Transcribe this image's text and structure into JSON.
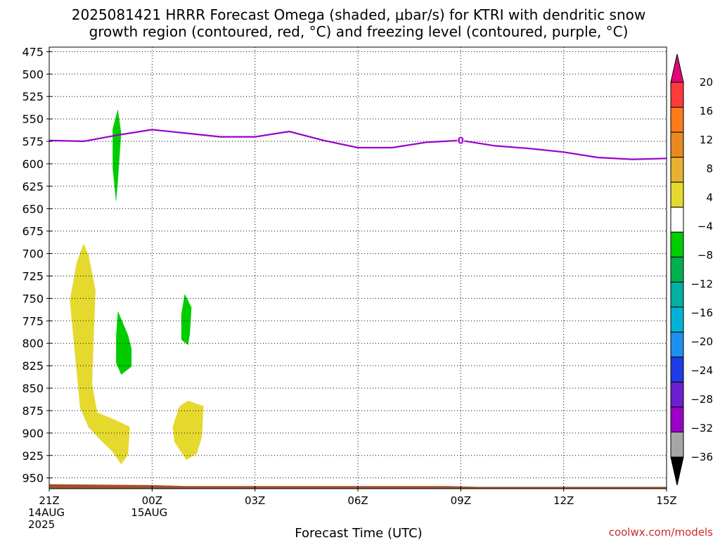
{
  "header": {
    "title_line1": "2025081421 HRRR Forecast Omega (shaded, μbar/s) for KTRI with dendritic snow",
    "title_line2": "growth region (contoured, red, °C) and freezing level (contoured, purple, °C)"
  },
  "footer": {
    "xlabel": "Forecast Time (UTC)",
    "credit": "coolwx.com/models"
  },
  "chart_data": {
    "type": "time-height cross section",
    "x_unit": "forecast hour from 2025-08-14 21Z",
    "xlim": [
      0,
      18
    ],
    "ylim_hpa": [
      470,
      962
    ],
    "y_axis_inverted": true,
    "grid": true,
    "yticks": [
      475,
      500,
      525,
      550,
      575,
      600,
      625,
      650,
      675,
      700,
      725,
      750,
      775,
      800,
      825,
      850,
      875,
      900,
      925,
      950
    ],
    "xticks": [
      {
        "hour": 0,
        "lines": [
          "21Z",
          "14AUG",
          "2025"
        ]
      },
      {
        "hour": 3,
        "lines": [
          "00Z",
          "15AUG"
        ]
      },
      {
        "hour": 6,
        "lines": [
          "03Z"
        ]
      },
      {
        "hour": 9,
        "lines": [
          "06Z"
        ]
      },
      {
        "hour": 12,
        "lines": [
          "09Z"
        ]
      },
      {
        "hour": 15,
        "lines": [
          "12Z"
        ]
      },
      {
        "hour": 18,
        "lines": [
          "15Z"
        ]
      }
    ],
    "freezing_level": {
      "label": "0",
      "label_at_hour": 12,
      "color": "#9900cc",
      "points": [
        [
          0,
          574
        ],
        [
          1,
          575
        ],
        [
          2,
          568
        ],
        [
          3,
          562
        ],
        [
          4,
          566
        ],
        [
          5,
          570
        ],
        [
          6,
          570
        ],
        [
          7,
          564
        ],
        [
          8,
          574
        ],
        [
          9,
          582
        ],
        [
          10,
          582
        ],
        [
          11,
          576
        ],
        [
          12,
          574
        ],
        [
          13,
          580
        ],
        [
          14,
          583
        ],
        [
          15,
          587
        ],
        [
          16,
          593
        ],
        [
          17,
          595
        ],
        [
          18,
          594
        ]
      ]
    },
    "omega_regions": [
      {
        "color": "#00cc00",
        "points": [
          [
            1.85,
            561
          ],
          [
            2.0,
            539
          ],
          [
            2.1,
            566
          ],
          [
            2.0,
            620
          ],
          [
            1.95,
            643
          ],
          [
            1.85,
            605
          ]
        ]
      },
      {
        "color": "#e6d92e",
        "points": [
          [
            1.0,
            689
          ],
          [
            1.15,
            702
          ],
          [
            1.35,
            741
          ],
          [
            1.3,
            791
          ],
          [
            1.25,
            845
          ],
          [
            1.4,
            877
          ],
          [
            1.9,
            885
          ],
          [
            2.35,
            893
          ],
          [
            2.3,
            924
          ],
          [
            2.1,
            935
          ],
          [
            1.85,
            921
          ],
          [
            1.55,
            910
          ],
          [
            1.15,
            894
          ],
          [
            0.9,
            872
          ],
          [
            0.7,
            792
          ],
          [
            0.6,
            752
          ],
          [
            0.8,
            710
          ]
        ]
      },
      {
        "color": "#00cc00",
        "points": [
          [
            2.0,
            764
          ],
          [
            2.3,
            791
          ],
          [
            2.4,
            806
          ],
          [
            2.4,
            826
          ],
          [
            2.1,
            835
          ],
          [
            1.95,
            822
          ],
          [
            1.95,
            792
          ]
        ]
      },
      {
        "color": "#00cc00",
        "points": [
          [
            3.95,
            745
          ],
          [
            4.15,
            760
          ],
          [
            4.1,
            790
          ],
          [
            4.05,
            802
          ],
          [
            3.85,
            796
          ],
          [
            3.85,
            768
          ]
        ]
      },
      {
        "color": "#e6d92e",
        "points": [
          [
            3.8,
            870
          ],
          [
            4.05,
            864
          ],
          [
            4.5,
            870
          ],
          [
            4.45,
            905
          ],
          [
            4.3,
            923
          ],
          [
            4.0,
            930
          ],
          [
            3.65,
            910
          ],
          [
            3.6,
            893
          ]
        ]
      }
    ],
    "terrain": {
      "color": "#a0522d",
      "points": [
        [
          0,
          957
        ],
        [
          3,
          958
        ],
        [
          3.9,
          959
        ],
        [
          11.5,
          959
        ],
        [
          12.5,
          960
        ],
        [
          18,
          960
        ]
      ]
    },
    "colorbar": {
      "labels": [
        "20",
        "16",
        "12",
        "8",
        "4",
        "−4",
        "−8",
        "−12",
        "−16",
        "−20",
        "−24",
        "−28",
        "−32",
        "−36"
      ],
      "top_arrow_color": "#e6007a",
      "bottom_arrow_color": "#000000",
      "bins_top_to_bottom": [
        "#ff3a3a",
        "#ff7a1a",
        "#e88a20",
        "#e8b030",
        "#e6d92e",
        "#ffffff",
        "#00cc00",
        "#00b050",
        "#00b0a0",
        "#00b4d8",
        "#1e8ff0",
        "#1e3ce6",
        "#6a1fd0",
        "#9c00c8",
        "#a6a6a6"
      ]
    }
  }
}
